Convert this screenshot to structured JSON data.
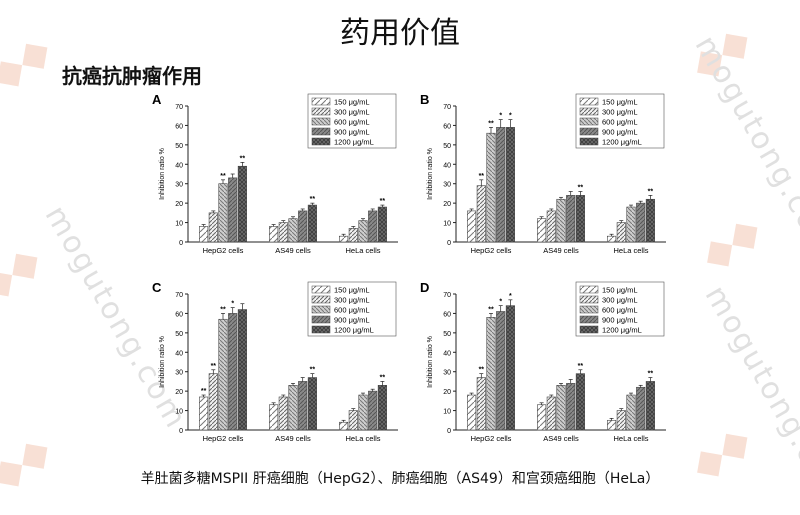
{
  "slide": {
    "title": "药用价值",
    "subtitle": "抗癌抗肿瘤作用",
    "caption": "羊肚菌多糖MSPII 肝癌细胞（HepG2）、肺癌细胞（AS49）和宫颈癌细胞（HeLa）",
    "watermark": "mogutong.com"
  },
  "chart_data": [
    {
      "panel": "A",
      "type": "bar",
      "categories": [
        "HepG2 cells",
        "AS49 cells",
        "HeLa cells"
      ],
      "ylabel": "Inhibition ratio %",
      "ylim": [
        0,
        70
      ],
      "yticks": [
        0,
        10,
        20,
        30,
        40,
        50,
        60,
        70
      ],
      "series": [
        {
          "name": "150 μg/mL",
          "values": [
            8,
            8,
            3
          ],
          "errors": [
            1,
            1,
            1
          ],
          "sig": [
            "",
            "",
            ""
          ]
        },
        {
          "name": "300 μg/mL",
          "values": [
            15,
            10,
            7
          ],
          "errors": [
            1,
            1,
            1
          ],
          "sig": [
            "",
            "",
            ""
          ]
        },
        {
          "name": "600 μg/mL",
          "values": [
            30,
            12,
            11
          ],
          "errors": [
            2,
            1,
            1
          ],
          "sig": [
            "**",
            "",
            ""
          ]
        },
        {
          "name": "900 μg/mL",
          "values": [
            33,
            16,
            16
          ],
          "errors": [
            2,
            1,
            1
          ],
          "sig": [
            "",
            "",
            ""
          ]
        },
        {
          "name": "1200 μg/mL",
          "values": [
            39,
            19,
            18
          ],
          "errors": [
            2,
            1,
            1
          ],
          "sig": [
            "**",
            "**",
            "**"
          ]
        }
      ]
    },
    {
      "panel": "B",
      "type": "bar",
      "categories": [
        "HepG2 cells",
        "AS49 cells",
        "HeLa cells"
      ],
      "ylabel": "Inhibition ratio %",
      "ylim": [
        0,
        70
      ],
      "yticks": [
        0,
        10,
        20,
        30,
        40,
        50,
        60,
        70
      ],
      "series": [
        {
          "name": "150 μg/mL",
          "values": [
            16,
            12,
            3
          ],
          "errors": [
            1,
            1,
            1
          ],
          "sig": [
            "",
            "",
            ""
          ]
        },
        {
          "name": "300 μg/mL",
          "values": [
            29,
            16,
            10
          ],
          "errors": [
            3,
            1,
            1
          ],
          "sig": [
            "**",
            "",
            ""
          ]
        },
        {
          "name": "600 μg/mL",
          "values": [
            56,
            22,
            18
          ],
          "errors": [
            3,
            1,
            1
          ],
          "sig": [
            "**",
            "",
            ""
          ]
        },
        {
          "name": "900 μg/mL",
          "values": [
            59,
            24,
            20
          ],
          "errors": [
            4,
            2,
            1
          ],
          "sig": [
            "*",
            "",
            ""
          ]
        },
        {
          "name": "1200 μg/mL",
          "values": [
            59,
            24,
            22
          ],
          "errors": [
            4,
            2,
            2
          ],
          "sig": [
            "*",
            "**",
            "**"
          ]
        }
      ]
    },
    {
      "panel": "C",
      "type": "bar",
      "categories": [
        "HepG2 cells",
        "AS49 cells",
        "HeLa cells"
      ],
      "ylabel": "Inhibition ratio %",
      "ylim": [
        0,
        70
      ],
      "yticks": [
        0,
        10,
        20,
        30,
        40,
        50,
        60,
        70
      ],
      "series": [
        {
          "name": "150 μg/mL",
          "values": [
            17,
            13,
            4
          ],
          "errors": [
            1,
            1,
            1
          ],
          "sig": [
            "**",
            "",
            ""
          ]
        },
        {
          "name": "300 μg/mL",
          "values": [
            29,
            17,
            10
          ],
          "errors": [
            2,
            1,
            1
          ],
          "sig": [
            "**",
            "",
            ""
          ]
        },
        {
          "name": "600 μg/mL",
          "values": [
            57,
            23,
            18
          ],
          "errors": [
            3,
            1,
            1
          ],
          "sig": [
            "**",
            "",
            ""
          ]
        },
        {
          "name": "900 μg/mL",
          "values": [
            60,
            25,
            20
          ],
          "errors": [
            3,
            2,
            1
          ],
          "sig": [
            "*",
            "",
            ""
          ]
        },
        {
          "name": "1200 μg/mL",
          "values": [
            62,
            27,
            23
          ],
          "errors": [
            3,
            2,
            2
          ],
          "sig": [
            "",
            "**",
            "**"
          ]
        }
      ]
    },
    {
      "panel": "D",
      "type": "bar",
      "categories": [
        "HepG2 cells",
        "AS49 cells",
        "HeLa cells"
      ],
      "ylabel": "Inhibition ratio %",
      "ylim": [
        0,
        70
      ],
      "yticks": [
        0,
        10,
        20,
        30,
        40,
        50,
        60,
        70
      ],
      "series": [
        {
          "name": "150 μg/mL",
          "values": [
            18,
            13,
            5
          ],
          "errors": [
            1,
            1,
            1
          ],
          "sig": [
            "",
            "",
            ""
          ]
        },
        {
          "name": "300 μg/mL",
          "values": [
            27,
            17,
            10
          ],
          "errors": [
            2,
            1,
            1
          ],
          "sig": [
            "**",
            "",
            ""
          ]
        },
        {
          "name": "600 μg/mL",
          "values": [
            58,
            23,
            18
          ],
          "errors": [
            2,
            1,
            1
          ],
          "sig": [
            "**",
            "",
            ""
          ]
        },
        {
          "name": "900 μg/mL",
          "values": [
            61,
            24,
            22
          ],
          "errors": [
            3,
            2,
            1
          ],
          "sig": [
            "*",
            "",
            ""
          ]
        },
        {
          "name": "1200 μg/mL",
          "values": [
            64,
            29,
            25
          ],
          "errors": [
            3,
            2,
            2
          ],
          "sig": [
            "*",
            "**",
            "**"
          ]
        }
      ]
    }
  ]
}
